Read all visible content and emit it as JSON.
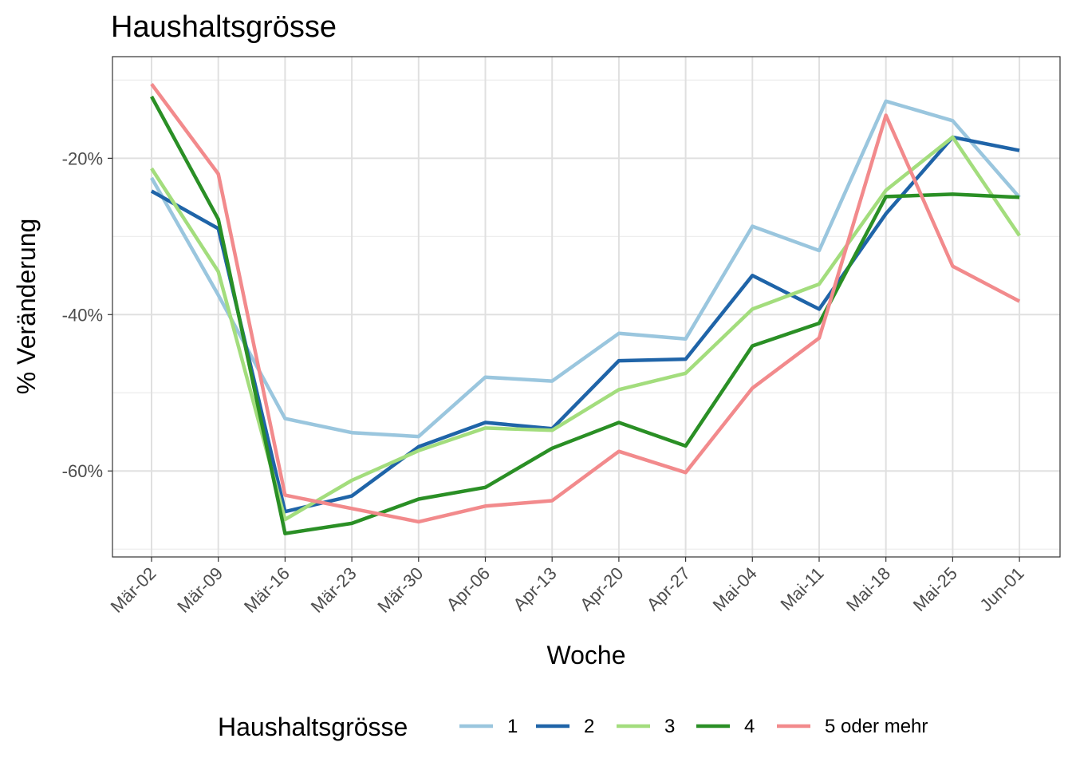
{
  "chart_data": {
    "type": "line",
    "title": "Haushaltsgrösse",
    "xlabel": "Woche",
    "ylabel": "% Veränderung",
    "categories": [
      "Mär-02",
      "Mär-09",
      "Mär-16",
      "Mär-23",
      "Mär-30",
      "Apr-06",
      "Apr-13",
      "Apr-20",
      "Apr-27",
      "Mai-04",
      "Mai-11",
      "Mai-18",
      "Mai-25",
      "Jun-01"
    ],
    "ylim": [
      -71,
      -7
    ],
    "yticks": [
      -20,
      -40,
      -60
    ],
    "ytick_labels": [
      "-20%",
      "-40%",
      "-60%"
    ],
    "grid": true,
    "legend": {
      "title": "Haushaltsgrösse",
      "position": "bottom"
    },
    "series": [
      {
        "name": "1",
        "color": "#9ac6de",
        "values": [
          -22.5,
          -37.5,
          -53.3,
          -55.1,
          -55.6,
          -48.0,
          -48.5,
          -42.4,
          -43.1,
          -28.7,
          -31.8,
          -12.7,
          -15.2,
          -25.0
        ]
      },
      {
        "name": "2",
        "color": "#1f64a8",
        "values": [
          -24.2,
          -29.0,
          -65.2,
          -63.2,
          -56.9,
          -53.8,
          -54.6,
          -45.9,
          -45.7,
          -35.0,
          -39.3,
          -27.1,
          -17.3,
          -19.0
        ]
      },
      {
        "name": "3",
        "color": "#a3dd7d",
        "values": [
          -21.3,
          -34.5,
          -66.2,
          -61.2,
          -57.4,
          -54.5,
          -54.8,
          -49.6,
          -47.5,
          -39.3,
          -36.1,
          -24.1,
          -17.3,
          -29.9
        ]
      },
      {
        "name": "4",
        "color": "#2a8f25",
        "values": [
          -12.1,
          -27.8,
          -68.0,
          -66.7,
          -63.6,
          -62.1,
          -57.1,
          -53.8,
          -56.8,
          -44.0,
          -41.1,
          -24.9,
          -24.6,
          -25.0
        ]
      },
      {
        "name": "5 oder mehr",
        "color": "#f28a8c",
        "values": [
          -10.5,
          -22.0,
          -63.1,
          -64.8,
          -66.5,
          -64.5,
          -63.8,
          -57.5,
          -60.2,
          -49.4,
          -43.0,
          -14.5,
          -33.8,
          -38.3
        ]
      }
    ]
  }
}
